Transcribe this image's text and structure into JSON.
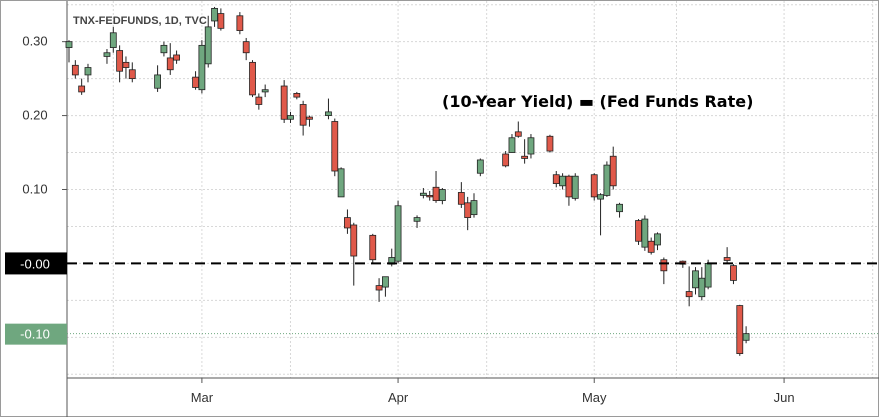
{
  "chart_data": {
    "type": "candlestick",
    "symbol_label": "TNX-FEDFUNDS, 1D, TVC",
    "annotation": "(10-Year Yield) ▬ (Fed Funds Rate)",
    "xlabel": "",
    "ylabel": "",
    "ylim": [
      -0.155,
      0.355
    ],
    "xlim": [
      "2022-02-08",
      "2022-06-16"
    ],
    "y_ticks": [
      "0.30",
      "0.20",
      "0.10",
      "-0.00",
      "-0.10"
    ],
    "y_tick_values": [
      0.3,
      0.2,
      0.1,
      0.0,
      -0.1
    ],
    "x_ticks": [
      {
        "label": "Mar",
        "date": "2022-03-01"
      },
      {
        "label": "Apr",
        "date": "2022-04-01"
      },
      {
        "label": "May",
        "date": "2022-05-02"
      },
      {
        "label": "Jun",
        "date": "2022-06-01"
      }
    ],
    "grid": true,
    "zero_line": {
      "value": 0.0,
      "label": "-0.00",
      "style": "dashed",
      "color": "#000000"
    },
    "last_value": {
      "value": -0.095,
      "label": "-0.10",
      "color": "#6fa77f"
    },
    "colors": {
      "up": "#6fa77f",
      "down": "#e0594a",
      "outline": "#222222",
      "grid": "#d8d8d8"
    },
    "series": [
      {
        "date": "2022-02-08",
        "o": 0.292,
        "h": 0.302,
        "l": 0.272,
        "c": 0.3
      },
      {
        "date": "2022-02-09",
        "o": 0.268,
        "h": 0.275,
        "l": 0.25,
        "c": 0.255
      },
      {
        "date": "2022-02-10",
        "o": 0.24,
        "h": 0.25,
        "l": 0.228,
        "c": 0.232
      },
      {
        "date": "2022-02-11",
        "o": 0.255,
        "h": 0.27,
        "l": 0.245,
        "c": 0.265
      },
      {
        "date": "2022-02-14",
        "o": 0.28,
        "h": 0.29,
        "l": 0.27,
        "c": 0.285
      },
      {
        "date": "2022-02-15",
        "o": 0.292,
        "h": 0.32,
        "l": 0.285,
        "c": 0.312
      },
      {
        "date": "2022-02-16",
        "o": 0.288,
        "h": 0.295,
        "l": 0.245,
        "c": 0.26
      },
      {
        "date": "2022-02-17",
        "o": 0.272,
        "h": 0.28,
        "l": 0.25,
        "c": 0.265
      },
      {
        "date": "2022-02-18",
        "o": 0.262,
        "h": 0.272,
        "l": 0.245,
        "c": 0.25
      },
      {
        "date": "2022-02-22",
        "o": 0.237,
        "h": 0.268,
        "l": 0.232,
        "c": 0.255
      },
      {
        "date": "2022-02-23",
        "o": 0.285,
        "h": 0.3,
        "l": 0.28,
        "c": 0.295
      },
      {
        "date": "2022-02-24",
        "o": 0.278,
        "h": 0.298,
        "l": 0.255,
        "c": 0.262
      },
      {
        "date": "2022-02-25",
        "o": 0.282,
        "h": 0.288,
        "l": 0.27,
        "c": 0.275
      },
      {
        "date": "2022-02-28",
        "o": 0.252,
        "h": 0.26,
        "l": 0.235,
        "c": 0.238
      },
      {
        "date": "2022-03-01",
        "o": 0.235,
        "h": 0.302,
        "l": 0.23,
        "c": 0.295
      },
      {
        "date": "2022-03-02",
        "o": 0.27,
        "h": 0.335,
        "l": 0.265,
        "c": 0.32
      },
      {
        "date": "2022-03-03",
        "o": 0.328,
        "h": 0.347,
        "l": 0.32,
        "c": 0.345
      },
      {
        "date": "2022-03-04",
        "o": 0.338,
        "h": 0.345,
        "l": 0.315,
        "c": 0.318
      },
      {
        "date": "2022-03-07",
        "o": 0.335,
        "h": 0.34,
        "l": 0.31,
        "c": 0.315
      },
      {
        "date": "2022-03-08",
        "o": 0.3,
        "h": 0.305,
        "l": 0.275,
        "c": 0.285
      },
      {
        "date": "2022-03-09",
        "o": 0.272,
        "h": 0.275,
        "l": 0.225,
        "c": 0.228
      },
      {
        "date": "2022-03-10",
        "o": 0.225,
        "h": 0.23,
        "l": 0.208,
        "c": 0.215
      },
      {
        "date": "2022-03-11",
        "o": 0.232,
        "h": 0.242,
        "l": 0.225,
        "c": 0.235
      },
      {
        "date": "2022-03-14",
        "o": 0.24,
        "h": 0.248,
        "l": 0.19,
        "c": 0.195
      },
      {
        "date": "2022-03-15",
        "o": 0.195,
        "h": 0.205,
        "l": 0.19,
        "c": 0.2
      },
      {
        "date": "2022-03-16",
        "o": 0.23,
        "h": 0.232,
        "l": 0.222,
        "c": 0.225
      },
      {
        "date": "2022-03-17",
        "o": 0.215,
        "h": 0.22,
        "l": 0.173,
        "c": 0.187
      },
      {
        "date": "2022-03-18",
        "o": 0.198,
        "h": 0.2,
        "l": 0.185,
        "c": 0.195
      },
      {
        "date": "2022-03-21",
        "o": 0.2,
        "h": 0.223,
        "l": 0.195,
        "c": 0.205
      },
      {
        "date": "2022-03-22",
        "o": 0.192,
        "h": 0.196,
        "l": 0.118,
        "c": 0.125
      },
      {
        "date": "2022-03-23",
        "o": 0.09,
        "h": 0.13,
        "l": 0.09,
        "c": 0.128
      },
      {
        "date": "2022-03-24",
        "o": 0.062,
        "h": 0.073,
        "l": 0.04,
        "c": 0.048
      },
      {
        "date": "2022-03-25",
        "o": 0.052,
        "h": 0.055,
        "l": -0.03,
        "c": 0.01
      },
      {
        "date": "2022-03-28",
        "o": 0.038,
        "h": 0.04,
        "l": 0.0,
        "c": 0.005
      },
      {
        "date": "2022-03-29",
        "o": -0.03,
        "h": -0.02,
        "l": -0.052,
        "c": -0.036
      },
      {
        "date": "2022-03-30",
        "o": -0.032,
        "h": -0.018,
        "l": -0.045,
        "c": -0.018
      },
      {
        "date": "2022-03-31",
        "o": -0.001,
        "h": 0.02,
        "l": -0.004,
        "c": 0.008
      },
      {
        "date": "2022-04-01",
        "o": 0.003,
        "h": 0.085,
        "l": 0.0,
        "c": 0.078
      },
      {
        "date": "2022-04-04",
        "o": 0.057,
        "h": 0.065,
        "l": 0.048,
        "c": 0.062
      },
      {
        "date": "2022-04-05",
        "o": 0.092,
        "h": 0.102,
        "l": 0.088,
        "c": 0.095
      },
      {
        "date": "2022-04-06",
        "o": 0.092,
        "h": 0.098,
        "l": 0.085,
        "c": 0.09
      },
      {
        "date": "2022-04-07",
        "o": 0.103,
        "h": 0.125,
        "l": 0.082,
        "c": 0.085
      },
      {
        "date": "2022-04-08",
        "o": 0.085,
        "h": 0.102,
        "l": 0.08,
        "c": 0.1
      },
      {
        "date": "2022-04-11",
        "o": 0.096,
        "h": 0.11,
        "l": 0.075,
        "c": 0.08
      },
      {
        "date": "2022-04-12",
        "o": 0.082,
        "h": 0.09,
        "l": 0.045,
        "c": 0.062
      },
      {
        "date": "2022-04-13",
        "o": 0.066,
        "h": 0.095,
        "l": 0.062,
        "c": 0.085
      },
      {
        "date": "2022-04-14",
        "o": 0.122,
        "h": 0.142,
        "l": 0.118,
        "c": 0.14
      },
      {
        "date": "2022-04-18",
        "o": 0.148,
        "h": 0.152,
        "l": 0.13,
        "c": 0.132
      },
      {
        "date": "2022-04-19",
        "o": 0.15,
        "h": 0.175,
        "l": 0.15,
        "c": 0.17
      },
      {
        "date": "2022-04-20",
        "o": 0.178,
        "h": 0.192,
        "l": 0.17,
        "c": 0.172
      },
      {
        "date": "2022-04-21",
        "o": 0.145,
        "h": 0.168,
        "l": 0.135,
        "c": 0.142
      },
      {
        "date": "2022-04-22",
        "o": 0.148,
        "h": 0.175,
        "l": 0.142,
        "c": 0.17
      },
      {
        "date": "2022-04-25",
        "o": 0.172,
        "h": 0.174,
        "l": 0.15,
        "c": 0.152
      },
      {
        "date": "2022-04-26",
        "o": 0.12,
        "h": 0.125,
        "l": 0.103,
        "c": 0.108
      },
      {
        "date": "2022-04-27",
        "o": 0.105,
        "h": 0.122,
        "l": 0.1,
        "c": 0.118
      },
      {
        "date": "2022-04-28",
        "o": 0.118,
        "h": 0.12,
        "l": 0.078,
        "c": 0.09
      },
      {
        "date": "2022-04-29",
        "o": 0.088,
        "h": 0.122,
        "l": 0.085,
        "c": 0.118
      },
      {
        "date": "2022-05-02",
        "o": 0.12,
        "h": 0.122,
        "l": 0.085,
        "c": 0.09
      },
      {
        "date": "2022-05-03",
        "o": 0.087,
        "h": 0.095,
        "l": 0.038,
        "c": 0.093
      },
      {
        "date": "2022-05-04",
        "o": 0.092,
        "h": 0.138,
        "l": 0.09,
        "c": 0.133
      },
      {
        "date": "2022-05-05",
        "o": 0.145,
        "h": 0.158,
        "l": 0.1,
        "c": 0.105
      },
      {
        "date": "2022-05-06",
        "o": 0.07,
        "h": 0.082,
        "l": 0.062,
        "c": 0.08
      },
      {
        "date": "2022-05-09",
        "o": 0.058,
        "h": 0.06,
        "l": 0.025,
        "c": 0.03
      },
      {
        "date": "2022-05-10",
        "o": 0.022,
        "h": 0.065,
        "l": 0.017,
        "c": 0.06
      },
      {
        "date": "2022-05-11",
        "o": 0.03,
        "h": 0.035,
        "l": 0.012,
        "c": 0.015
      },
      {
        "date": "2022-05-12",
        "o": 0.025,
        "h": 0.042,
        "l": 0.018,
        "c": 0.04
      },
      {
        "date": "2022-05-13",
        "o": 0.005,
        "h": 0.008,
        "l": -0.028,
        "c": -0.01
      },
      {
        "date": "2022-05-16",
        "o": 0.003,
        "h": 0.004,
        "l": -0.006,
        "c": -0.001
      },
      {
        "date": "2022-05-17",
        "o": -0.038,
        "h": -0.004,
        "l": -0.058,
        "c": -0.045
      },
      {
        "date": "2022-05-18",
        "o": -0.033,
        "h": -0.005,
        "l": -0.042,
        "c": -0.01
      },
      {
        "date": "2022-05-19",
        "o": -0.045,
        "h": -0.005,
        "l": -0.05,
        "c": -0.02
      },
      {
        "date": "2022-05-20",
        "o": -0.032,
        "h": 0.005,
        "l": -0.035,
        "c": 0.0
      },
      {
        "date": "2022-05-23",
        "o": 0.008,
        "h": 0.022,
        "l": 0.0,
        "c": 0.004
      },
      {
        "date": "2022-05-24",
        "o": -0.003,
        "h": -0.001,
        "l": -0.028,
        "c": -0.023
      },
      {
        "date": "2022-05-25",
        "o": -0.057,
        "h": -0.056,
        "l": -0.125,
        "c": -0.122
      },
      {
        "date": "2022-05-26",
        "o": -0.104,
        "h": -0.085,
        "l": -0.108,
        "c": -0.095
      }
    ]
  }
}
